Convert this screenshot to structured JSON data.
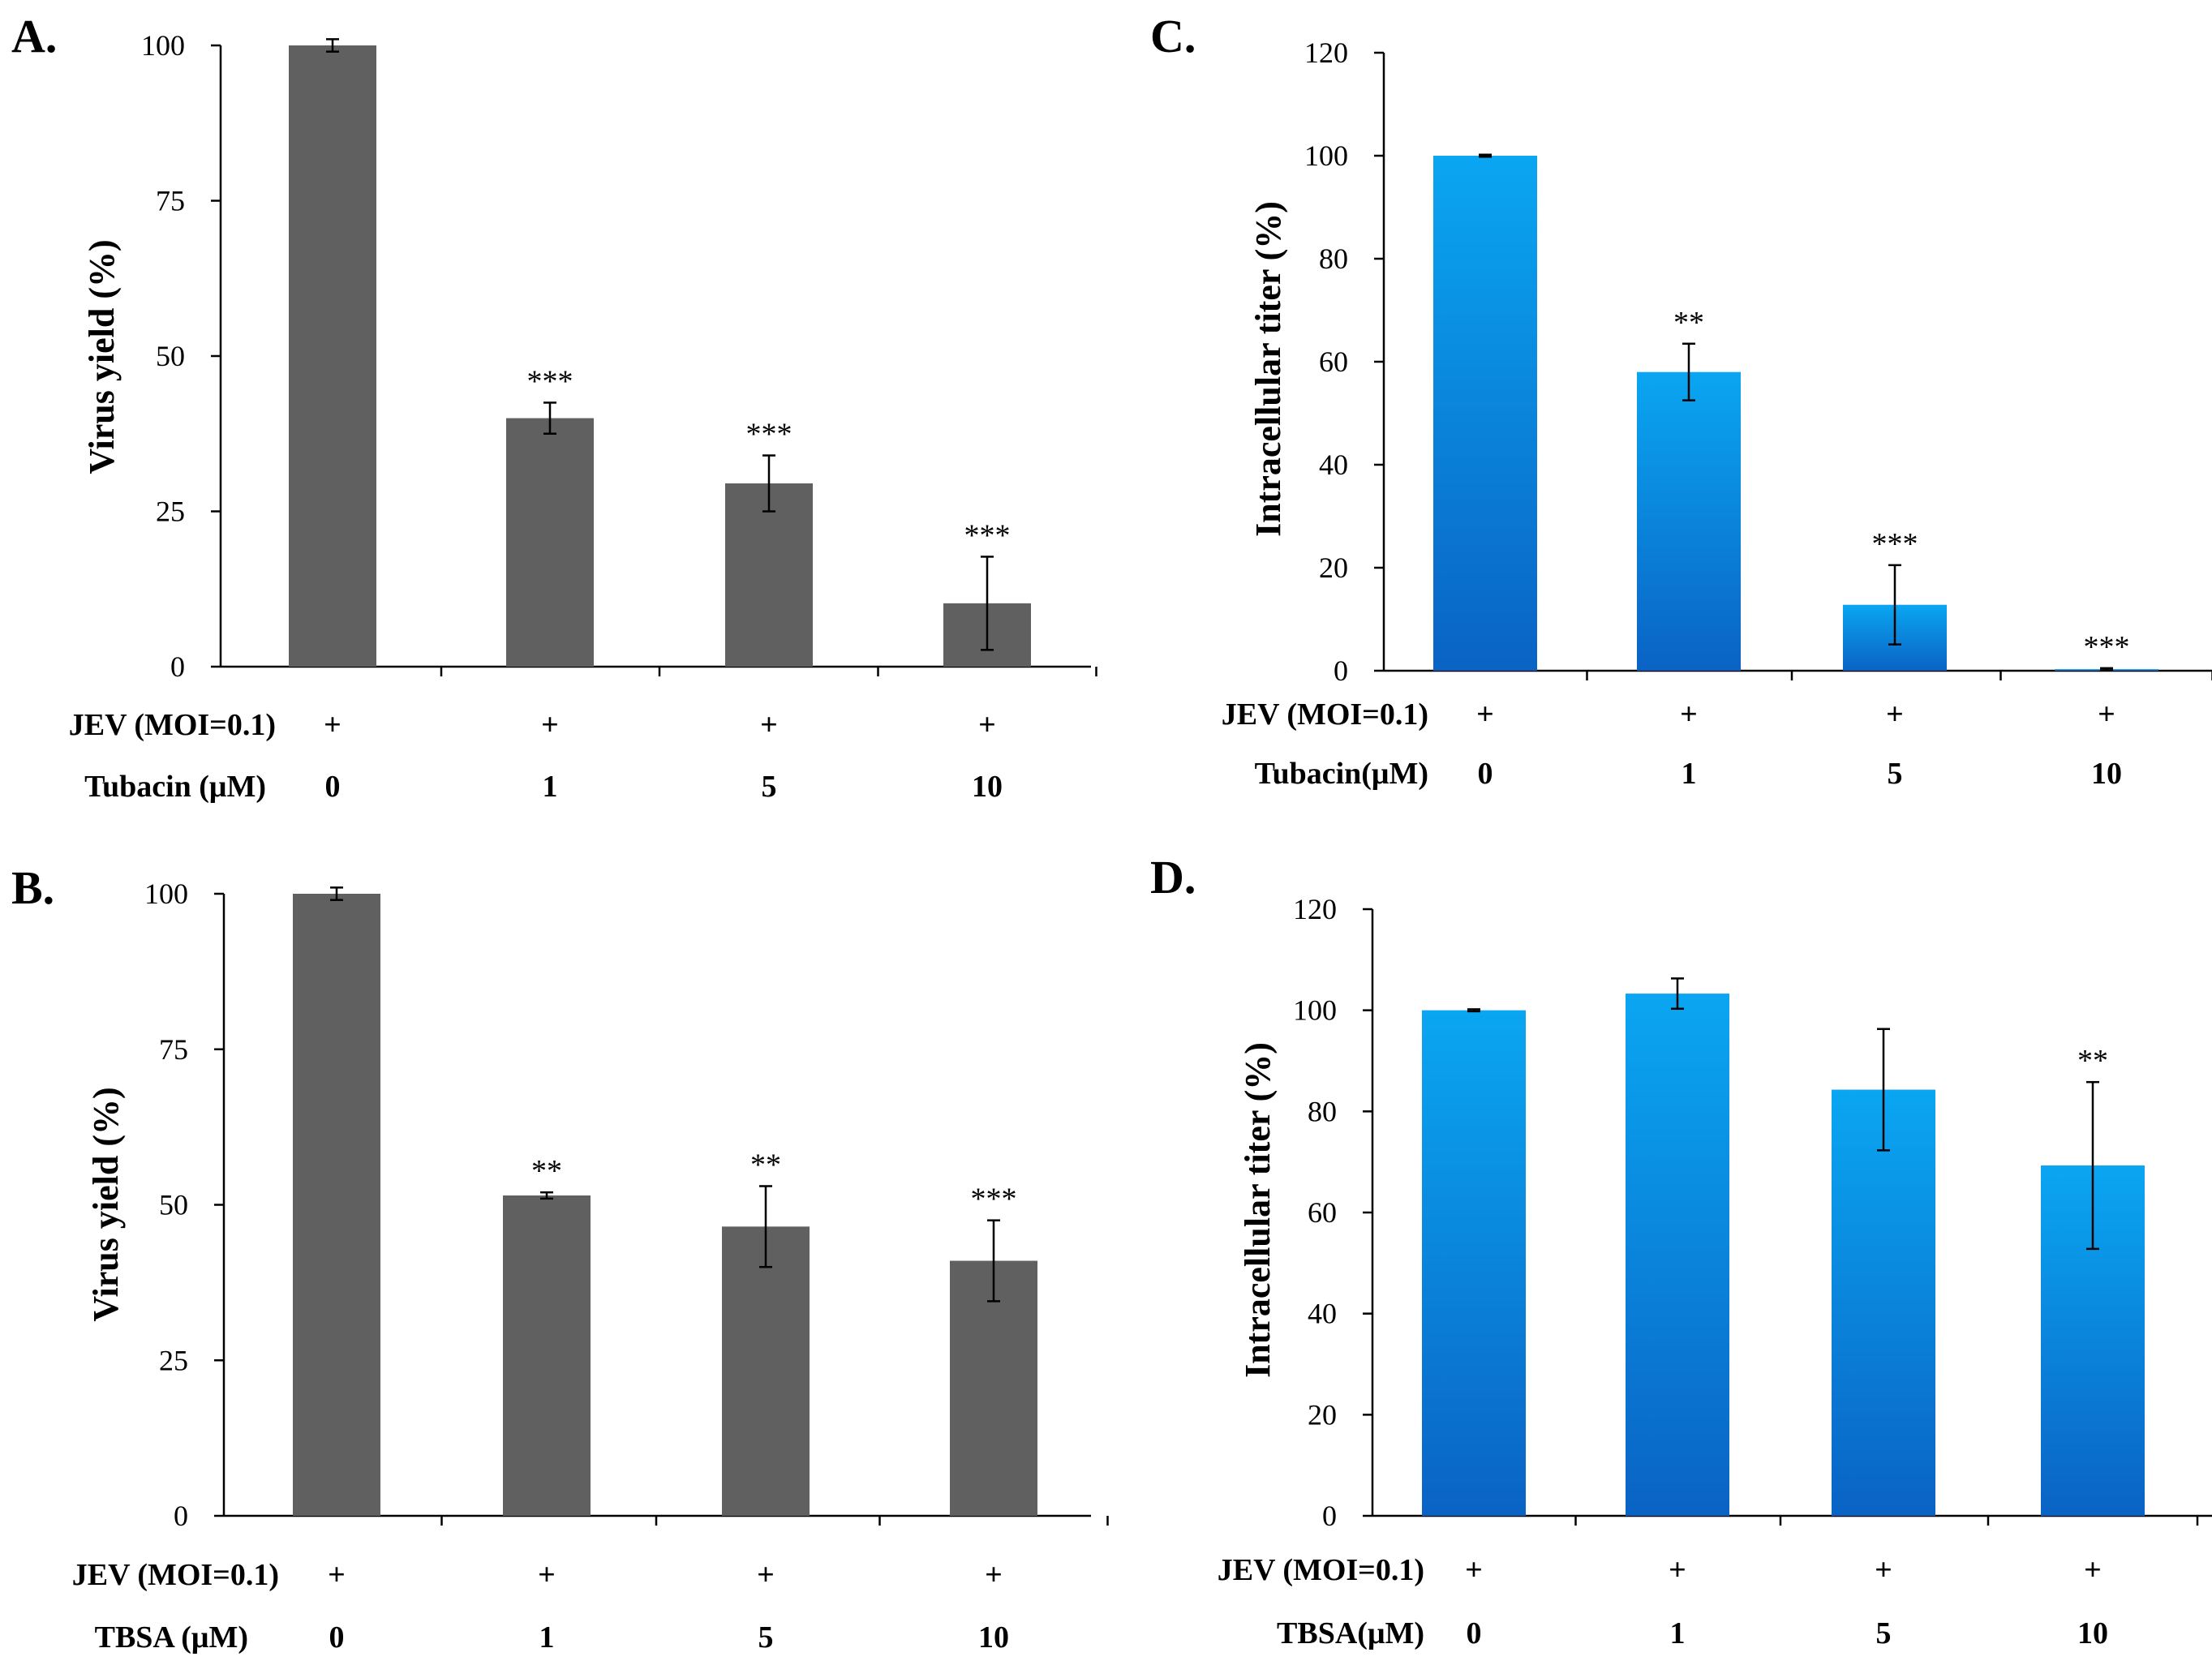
{
  "chart_data": [
    {
      "id": "A",
      "panel_label": "A.",
      "type": "bar",
      "ylabel": "Virus yield (%)",
      "ylim": [
        0,
        100
      ],
      "yticks": [
        0,
        25,
        50,
        75,
        100
      ],
      "bar_color": "#606060",
      "gradient": false,
      "values": [
        100,
        40,
        29.5,
        10.2
      ],
      "errors": [
        1,
        2.5,
        4.5,
        7.5
      ],
      "significance": [
        "",
        "***",
        "***",
        "***"
      ],
      "row1_label": "JEV (MOI=0.1)",
      "row1_values": [
        "+",
        "+",
        "+",
        "+"
      ],
      "row2_label": "Tubacin (μM)",
      "categories": [
        "0",
        "1",
        "5",
        "10"
      ]
    },
    {
      "id": "B",
      "panel_label": "B.",
      "type": "bar",
      "ylabel": "Virus yield  (%)",
      "ylim": [
        0,
        100
      ],
      "yticks": [
        0,
        25,
        50,
        75,
        100
      ],
      "bar_color": "#606060",
      "gradient": false,
      "values": [
        100,
        51.5,
        46.5,
        41
      ],
      "errors": [
        1,
        0.5,
        6.5,
        6.5
      ],
      "significance": [
        "",
        "**",
        "**",
        "***"
      ],
      "row1_label": "JEV (MOI=0.1)",
      "row1_values": [
        "+",
        "+",
        "+",
        "+"
      ],
      "row2_label": "TBSA (μM)",
      "categories": [
        "0",
        "1",
        "5",
        "10"
      ]
    },
    {
      "id": "C",
      "panel_label": "C.",
      "type": "bar",
      "ylabel": "Intracellular titer (%)",
      "ylim": [
        0,
        120
      ],
      "yticks": [
        0,
        20,
        40,
        60,
        80,
        100,
        120
      ],
      "bar_color": "#0aa6f2",
      "bar_color_dark": "#0a63c4",
      "gradient": true,
      "values": [
        100,
        58,
        12.8,
        0.3
      ],
      "errors": [
        0.2,
        5.5,
        7.7,
        0.2
      ],
      "significance": [
        "",
        "**",
        "***",
        "***"
      ],
      "row1_label": "JEV (MOI=0.1)",
      "row1_values": [
        "+",
        "+",
        "+",
        "+"
      ],
      "row2_label": "Tubacin(μM)",
      "categories": [
        "0",
        "1",
        "5",
        "10"
      ]
    },
    {
      "id": "D",
      "panel_label": "D.",
      "type": "bar",
      "ylabel": "Intracellular titer (%)",
      "ylim": [
        0,
        120
      ],
      "yticks": [
        0,
        20,
        40,
        60,
        80,
        100,
        120
      ],
      "bar_color": "#0aa6f2",
      "bar_color_dark": "#0a63c4",
      "gradient": true,
      "values": [
        100,
        103.3,
        84.3,
        69.3
      ],
      "errors": [
        0.2,
        3,
        12,
        16.5
      ],
      "significance": [
        "",
        "",
        "",
        "**"
      ],
      "row1_label": "JEV (MOI=0.1)",
      "row1_values": [
        "+",
        "+",
        "+",
        "+"
      ],
      "row2_label": "TBSA(μM)",
      "categories": [
        "0",
        "1",
        "5",
        "10"
      ]
    }
  ]
}
